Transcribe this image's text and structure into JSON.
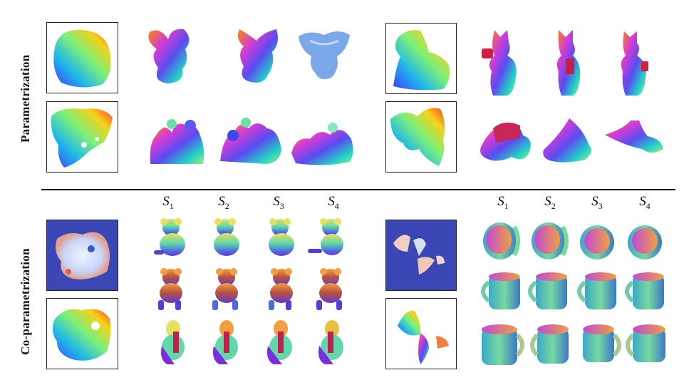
{
  "figure": {
    "row_labels": {
      "top": "Parametrization",
      "bottom": "Co-parametrization"
    },
    "shape_labels_left": [
      "S1",
      "S2",
      "S3",
      "S4"
    ],
    "shape_labels_right": [
      "S1",
      "S2",
      "S3",
      "S4"
    ],
    "colors": {
      "uv_background": "#3a47b5",
      "divider": "#111111"
    },
    "icons": [
      "gargoyle-model",
      "family-statue-model",
      "fox-figure-model",
      "cloth-model",
      "teddy-bear-model",
      "mug-model"
    ]
  }
}
